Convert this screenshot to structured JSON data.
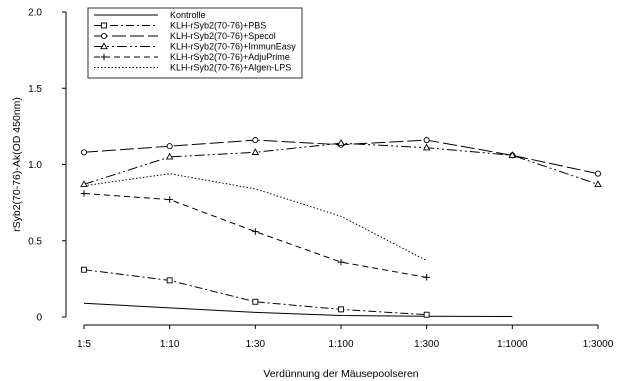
{
  "chart_data": {
    "type": "line",
    "title": "",
    "xlabel": "Verdünnung der Mäusepoolseren",
    "ylabel": "rSyb2(70-76)-Ak(OD 450nm)",
    "categories": [
      "1:5",
      "1:10",
      "1:30",
      "1:100",
      "1:300",
      "1:1000",
      "1:3000"
    ],
    "ylim": [
      0,
      2.0
    ],
    "yticks": [
      "0",
      "0.5",
      "1.0",
      "1.5",
      "2.0"
    ],
    "ytick_values": [
      0,
      0.5,
      1.0,
      1.5,
      2.0
    ],
    "grid": false,
    "legend_position": "top-left",
    "series": [
      {
        "name": "Kontrolle",
        "dash": "solid",
        "marker": "none",
        "values": [
          0.09,
          0.06,
          0.03,
          0.01,
          0.005,
          0.003,
          null
        ]
      },
      {
        "name": "KLH-rSyb2(70-76)+PBS",
        "dash": "dash-dot",
        "marker": "square",
        "values": [
          0.31,
          0.24,
          0.1,
          0.05,
          0.015,
          null,
          null
        ]
      },
      {
        "name": "KLH-rSyb2(70-76)+Specol",
        "dash": "long-dash",
        "marker": "circle",
        "values": [
          1.08,
          1.12,
          1.16,
          1.13,
          1.16,
          1.06,
          0.94
        ]
      },
      {
        "name": "KLH-rSyb2(70-76)+ImmunEasy",
        "dash": "dash-dot-dot",
        "marker": "triangle",
        "values": [
          0.87,
          1.05,
          1.08,
          1.14,
          1.11,
          1.06,
          0.87
        ]
      },
      {
        "name": "KLH-rSyb2(70-76)+AdjuPrime",
        "dash": "dashed",
        "marker": "plus",
        "values": [
          0.81,
          0.77,
          0.56,
          0.36,
          0.26,
          null,
          null
        ]
      },
      {
        "name": "KLH-rSyb2(70-76)+Algen-LPS",
        "dash": "dotted",
        "marker": "none",
        "values": [
          0.86,
          0.94,
          0.84,
          0.66,
          0.37,
          null,
          null
        ]
      }
    ]
  }
}
